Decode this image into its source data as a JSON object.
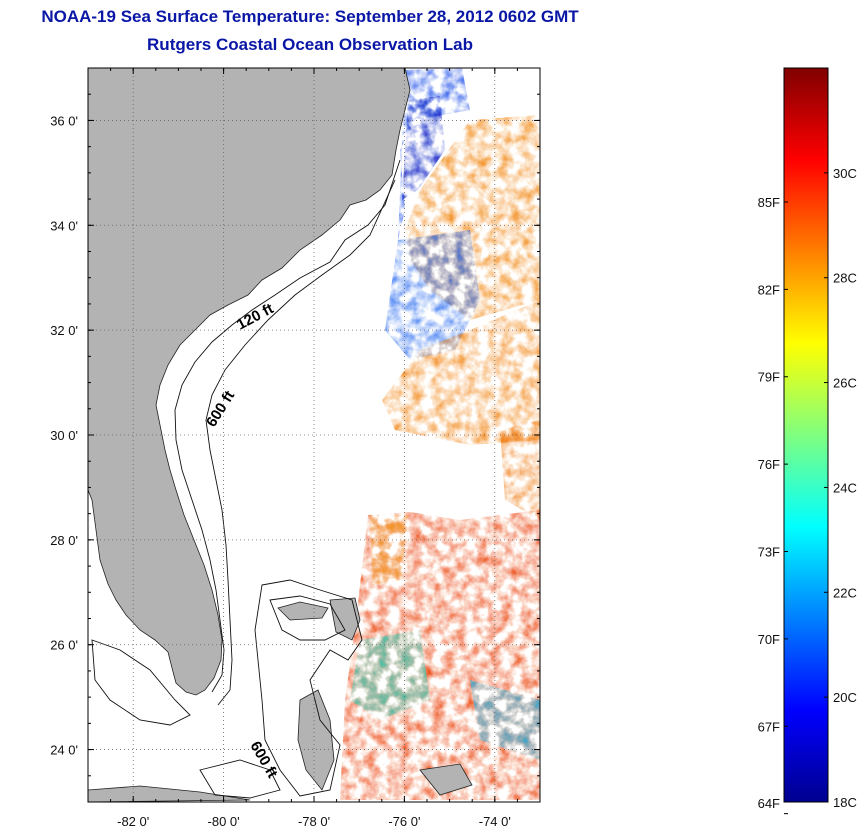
{
  "title": "NOAA-19 Sea Surface Temperature:  September 28, 2012 0602 GMT",
  "subtitle": "Rutgers Coastal Ocean Observation Lab",
  "map": {
    "lon_range": [
      -83,
      -73
    ],
    "lat_range": [
      23,
      37
    ],
    "lon_ticks": [
      {
        "value": -82,
        "label": "-82 0'"
      },
      {
        "value": -80,
        "label": "-80 0'"
      },
      {
        "value": -78,
        "label": "-78 0'"
      },
      {
        "value": -76,
        "label": "-76 0'"
      },
      {
        "value": -74,
        "label": "-74 0'"
      }
    ],
    "lat_ticks": [
      {
        "value": 24,
        "label": "24 0'"
      },
      {
        "value": 26,
        "label": "26 0'"
      },
      {
        "value": 28,
        "label": "28 0'"
      },
      {
        "value": 30,
        "label": "30 0'"
      },
      {
        "value": 32,
        "label": "32 0'"
      },
      {
        "value": 34,
        "label": "34 0'"
      },
      {
        "value": 36,
        "label": "36 0'"
      }
    ],
    "contour_labels": [
      "120 ft",
      "600 ft",
      "600 ft"
    ],
    "land_color": "#b3b3b3",
    "grid": true
  },
  "colorbar": {
    "range_c": [
      18,
      32
    ],
    "celsius_labels": [
      {
        "value": 18,
        "label": "18C"
      },
      {
        "value": 20,
        "label": "20C"
      },
      {
        "value": 22,
        "label": "22C"
      },
      {
        "value": 24,
        "label": "24C"
      },
      {
        "value": 26,
        "label": "26C"
      },
      {
        "value": 28,
        "label": "28C"
      },
      {
        "value": 30,
        "label": "30C"
      }
    ],
    "fahrenheit_labels": [
      {
        "value": 64,
        "label": "64F"
      },
      {
        "value": 67,
        "label": "67F"
      },
      {
        "value": 70,
        "label": "70F"
      },
      {
        "value": 73,
        "label": "73F"
      },
      {
        "value": 76,
        "label": "76F"
      },
      {
        "value": 79,
        "label": "79F"
      },
      {
        "value": 82,
        "label": "82F"
      },
      {
        "value": 85,
        "label": "85F"
      }
    ],
    "colormap": [
      "#00008f",
      "#0000ff",
      "#00ffff",
      "#ffff00",
      "#ff0000",
      "#800000"
    ]
  }
}
